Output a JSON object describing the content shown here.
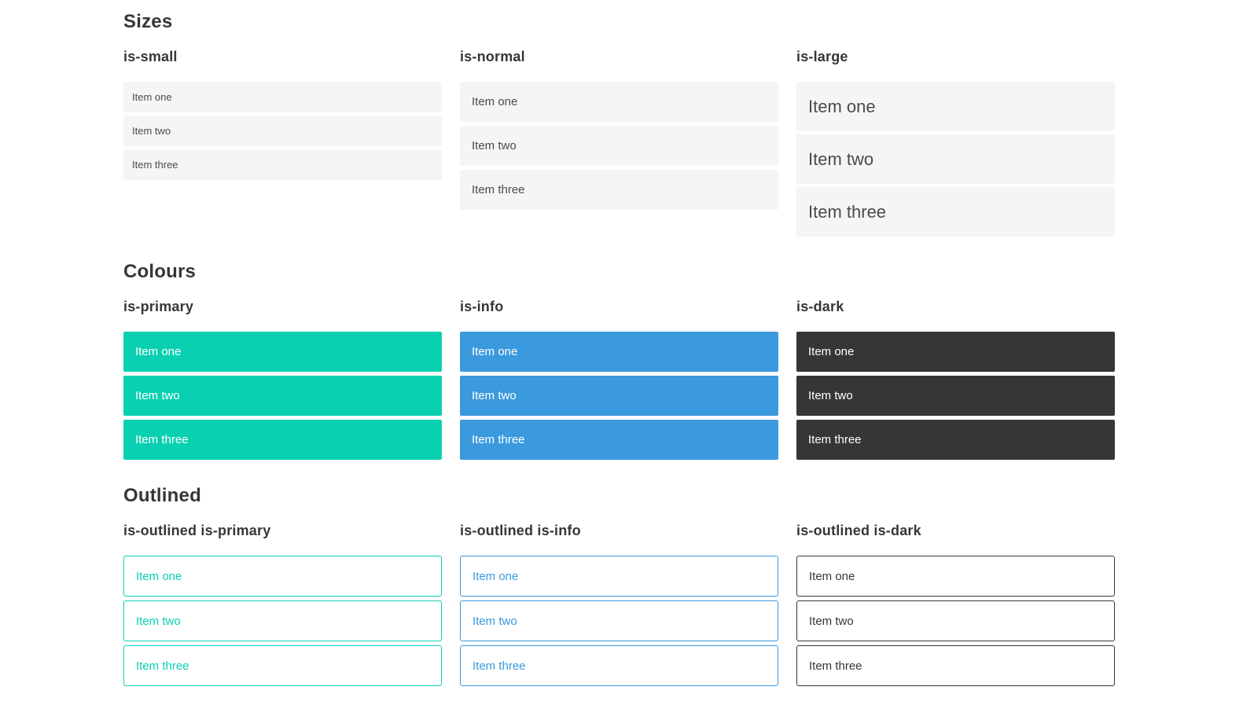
{
  "page": {
    "sections": [
      {
        "title": "Sizes",
        "variants": [
          {
            "label": "is-small",
            "items": [
              "Item one",
              "Item two",
              "Item three"
            ]
          },
          {
            "label": "is-normal",
            "items": [
              "Item one",
              "Item two",
              "Item three"
            ]
          },
          {
            "label": "is-large",
            "items": [
              "Item one",
              "Item two",
              "Item three"
            ]
          }
        ]
      },
      {
        "title": "Colours",
        "variants": [
          {
            "label": "is-primary",
            "items": [
              "Item one",
              "Item two",
              "Item three"
            ]
          },
          {
            "label": "is-info",
            "items": [
              "Item one",
              "Item two",
              "Item three"
            ]
          },
          {
            "label": "is-dark",
            "items": [
              "Item one",
              "Item two",
              "Item three"
            ]
          }
        ]
      },
      {
        "title": "Outlined",
        "variants": [
          {
            "label": "is-outlined is-primary",
            "items": [
              "Item one",
              "Item two",
              "Item three"
            ]
          },
          {
            "label": "is-outlined is-info",
            "items": [
              "Item one",
              "Item two",
              "Item three"
            ]
          },
          {
            "label": "is-outlined is-dark",
            "items": [
              "Item one",
              "Item two",
              "Item three"
            ]
          }
        ]
      }
    ],
    "colors": {
      "primary": "#0ad0b2",
      "info": "#3b99dd",
      "dark": "#363636",
      "item_bg": "#f5f5f5",
      "item_text": "#4a4a4a",
      "heading_text": "#363636",
      "on_color_text": "#ffffff",
      "page_bg": "#ffffff"
    }
  }
}
